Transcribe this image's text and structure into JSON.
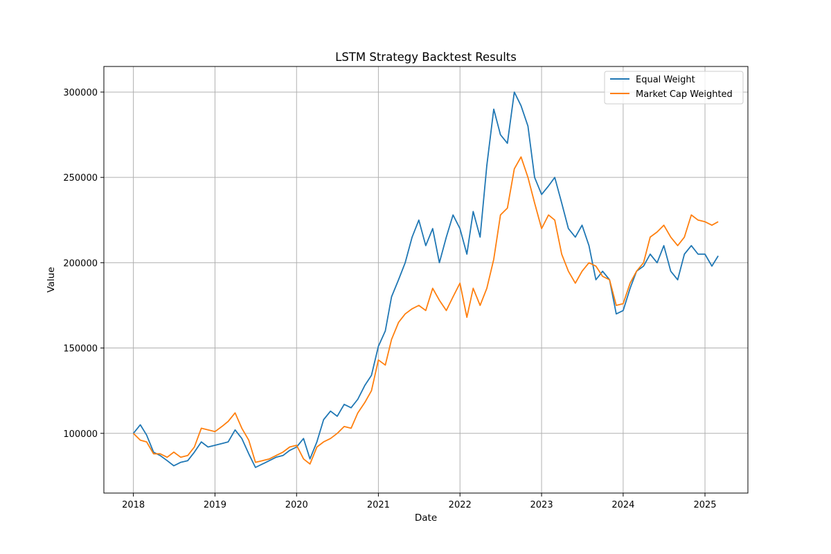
{
  "chart_data": {
    "type": "line",
    "title": "LSTM Strategy Backtest Results",
    "xlabel": "Date",
    "ylabel": "Value",
    "x_ticks": [
      "2018",
      "2019",
      "2020",
      "2021",
      "2022",
      "2023",
      "2024",
      "2025"
    ],
    "y_ticks": [
      "100000",
      "150000",
      "200000",
      "250000",
      "300000"
    ],
    "xlim": [
      "2017-08-22",
      "2025-07-12"
    ],
    "ylim": [
      65000,
      315000
    ],
    "grid": true,
    "legend_position": "top-right",
    "series": [
      {
        "name": "Equal Weight",
        "color": "#1f77b4",
        "points": [
          [
            "2018-01-01",
            100000
          ],
          [
            "2018-02-01",
            105000
          ],
          [
            "2018-03-01",
            99000
          ],
          [
            "2018-04-01",
            89000
          ],
          [
            "2018-05-01",
            87000
          ],
          [
            "2018-06-01",
            84000
          ],
          [
            "2018-07-01",
            81000
          ],
          [
            "2018-08-01",
            83000
          ],
          [
            "2018-09-01",
            84000
          ],
          [
            "2018-10-01",
            89000
          ],
          [
            "2018-11-01",
            95000
          ],
          [
            "2018-12-01",
            92000
          ],
          [
            "2019-01-01",
            93000
          ],
          [
            "2019-02-01",
            94000
          ],
          [
            "2019-03-01",
            95000
          ],
          [
            "2019-04-01",
            102000
          ],
          [
            "2019-05-01",
            97000
          ],
          [
            "2019-06-01",
            88000
          ],
          [
            "2019-07-01",
            80000
          ],
          [
            "2019-08-01",
            82000
          ],
          [
            "2019-09-01",
            84000
          ],
          [
            "2019-10-01",
            86000
          ],
          [
            "2019-11-01",
            87000
          ],
          [
            "2019-12-01",
            90000
          ],
          [
            "2020-01-01",
            92000
          ],
          [
            "2020-02-01",
            97000
          ],
          [
            "2020-03-01",
            85000
          ],
          [
            "2020-04-01",
            95000
          ],
          [
            "2020-05-01",
            108000
          ],
          [
            "2020-06-01",
            113000
          ],
          [
            "2020-07-01",
            110000
          ],
          [
            "2020-08-01",
            117000
          ],
          [
            "2020-09-01",
            115000
          ],
          [
            "2020-10-01",
            120000
          ],
          [
            "2020-11-01",
            128000
          ],
          [
            "2020-12-01",
            134000
          ],
          [
            "2021-01-01",
            151000
          ],
          [
            "2021-02-01",
            160000
          ],
          [
            "2021-03-01",
            180000
          ],
          [
            "2021-04-01",
            190000
          ],
          [
            "2021-05-01",
            200000
          ],
          [
            "2021-06-01",
            215000
          ],
          [
            "2021-07-01",
            225000
          ],
          [
            "2021-08-01",
            210000
          ],
          [
            "2021-09-01",
            220000
          ],
          [
            "2021-10-01",
            200000
          ],
          [
            "2021-11-01",
            215000
          ],
          [
            "2021-12-01",
            228000
          ],
          [
            "2022-01-01",
            220000
          ],
          [
            "2022-02-01",
            205000
          ],
          [
            "2022-03-01",
            230000
          ],
          [
            "2022-04-01",
            215000
          ],
          [
            "2022-05-01",
            257000
          ],
          [
            "2022-06-01",
            290000
          ],
          [
            "2022-07-01",
            275000
          ],
          [
            "2022-08-01",
            270000
          ],
          [
            "2022-09-01",
            300000
          ],
          [
            "2022-10-01",
            292000
          ],
          [
            "2022-11-01",
            280000
          ],
          [
            "2022-12-01",
            250000
          ],
          [
            "2023-01-01",
            240000
          ],
          [
            "2023-02-01",
            245000
          ],
          [
            "2023-03-01",
            250000
          ],
          [
            "2023-04-01",
            235000
          ],
          [
            "2023-05-01",
            220000
          ],
          [
            "2023-06-01",
            215000
          ],
          [
            "2023-07-01",
            222000
          ],
          [
            "2023-08-01",
            210000
          ],
          [
            "2023-09-01",
            190000
          ],
          [
            "2023-10-01",
            195000
          ],
          [
            "2023-11-01",
            190000
          ],
          [
            "2023-12-01",
            170000
          ],
          [
            "2024-01-01",
            172000
          ],
          [
            "2024-02-01",
            185000
          ],
          [
            "2024-03-01",
            195000
          ],
          [
            "2024-04-01",
            198000
          ],
          [
            "2024-05-01",
            205000
          ],
          [
            "2024-06-01",
            200000
          ],
          [
            "2024-07-01",
            210000
          ],
          [
            "2024-08-01",
            195000
          ],
          [
            "2024-09-01",
            190000
          ],
          [
            "2024-10-01",
            205000
          ],
          [
            "2024-11-01",
            210000
          ],
          [
            "2024-12-01",
            205000
          ],
          [
            "2025-01-01",
            205000
          ],
          [
            "2025-02-01",
            198000
          ],
          [
            "2025-03-01",
            204000
          ]
        ]
      },
      {
        "name": "Market Cap Weighted",
        "color": "#ff7f0e",
        "points": [
          [
            "2018-01-01",
            100000
          ],
          [
            "2018-02-01",
            96000
          ],
          [
            "2018-03-01",
            95000
          ],
          [
            "2018-04-01",
            88000
          ],
          [
            "2018-05-01",
            88000
          ],
          [
            "2018-06-01",
            86000
          ],
          [
            "2018-07-01",
            89000
          ],
          [
            "2018-08-01",
            86000
          ],
          [
            "2018-09-01",
            87000
          ],
          [
            "2018-10-01",
            92000
          ],
          [
            "2018-11-01",
            103000
          ],
          [
            "2018-12-01",
            102000
          ],
          [
            "2019-01-01",
            101000
          ],
          [
            "2019-02-01",
            104000
          ],
          [
            "2019-03-01",
            107000
          ],
          [
            "2019-04-01",
            112000
          ],
          [
            "2019-05-01",
            103000
          ],
          [
            "2019-06-01",
            96000
          ],
          [
            "2019-07-01",
            83000
          ],
          [
            "2019-08-01",
            84000
          ],
          [
            "2019-09-01",
            85000
          ],
          [
            "2019-10-01",
            87000
          ],
          [
            "2019-11-01",
            89000
          ],
          [
            "2019-12-01",
            92000
          ],
          [
            "2020-01-01",
            93000
          ],
          [
            "2020-02-01",
            85000
          ],
          [
            "2020-03-01",
            82000
          ],
          [
            "2020-04-01",
            92000
          ],
          [
            "2020-05-01",
            95000
          ],
          [
            "2020-06-01",
            97000
          ],
          [
            "2020-07-01",
            100000
          ],
          [
            "2020-08-01",
            104000
          ],
          [
            "2020-09-01",
            103000
          ],
          [
            "2020-10-01",
            112000
          ],
          [
            "2020-11-01",
            118000
          ],
          [
            "2020-12-01",
            125000
          ],
          [
            "2021-01-01",
            143000
          ],
          [
            "2021-02-01",
            140000
          ],
          [
            "2021-03-01",
            155000
          ],
          [
            "2021-04-01",
            165000
          ],
          [
            "2021-05-01",
            170000
          ],
          [
            "2021-06-01",
            173000
          ],
          [
            "2021-07-01",
            175000
          ],
          [
            "2021-08-01",
            172000
          ],
          [
            "2021-09-01",
            185000
          ],
          [
            "2021-10-01",
            178000
          ],
          [
            "2021-11-01",
            172000
          ],
          [
            "2021-12-01",
            180000
          ],
          [
            "2022-01-01",
            188000
          ],
          [
            "2022-02-01",
            168000
          ],
          [
            "2022-03-01",
            185000
          ],
          [
            "2022-04-01",
            175000
          ],
          [
            "2022-05-01",
            185000
          ],
          [
            "2022-06-01",
            202000
          ],
          [
            "2022-07-01",
            228000
          ],
          [
            "2022-08-01",
            232000
          ],
          [
            "2022-09-01",
            255000
          ],
          [
            "2022-10-01",
            262000
          ],
          [
            "2022-11-01",
            250000
          ],
          [
            "2022-12-01",
            235000
          ],
          [
            "2023-01-01",
            220000
          ],
          [
            "2023-02-01",
            228000
          ],
          [
            "2023-03-01",
            225000
          ],
          [
            "2023-04-01",
            205000
          ],
          [
            "2023-05-01",
            195000
          ],
          [
            "2023-06-01",
            188000
          ],
          [
            "2023-07-01",
            195000
          ],
          [
            "2023-08-01",
            200000
          ],
          [
            "2023-09-01",
            198000
          ],
          [
            "2023-10-01",
            192000
          ],
          [
            "2023-11-01",
            190000
          ],
          [
            "2023-12-01",
            175000
          ],
          [
            "2024-01-01",
            176000
          ],
          [
            "2024-02-01",
            188000
          ],
          [
            "2024-03-01",
            195000
          ],
          [
            "2024-04-01",
            200000
          ],
          [
            "2024-05-01",
            215000
          ],
          [
            "2024-06-01",
            218000
          ],
          [
            "2024-07-01",
            222000
          ],
          [
            "2024-08-01",
            215000
          ],
          [
            "2024-09-01",
            210000
          ],
          [
            "2024-10-01",
            215000
          ],
          [
            "2024-11-01",
            228000
          ],
          [
            "2024-12-01",
            225000
          ],
          [
            "2025-01-01",
            224000
          ],
          [
            "2025-02-01",
            222000
          ],
          [
            "2025-03-01",
            224000
          ]
        ]
      }
    ]
  }
}
